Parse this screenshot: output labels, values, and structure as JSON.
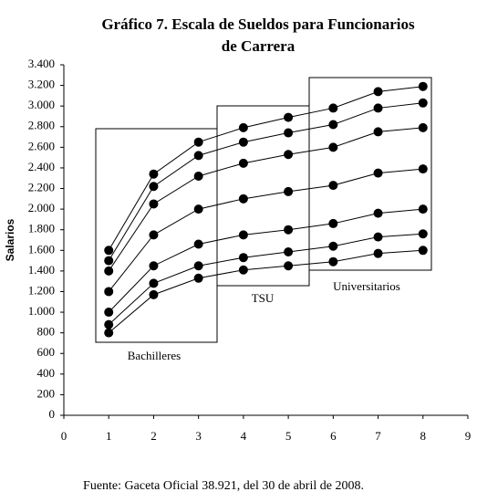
{
  "chart_data": {
    "type": "line",
    "title": [
      "Gráfico 7. Escala de Sueldos para Funcionarios",
      "de Carrera"
    ],
    "ylabel": "Salarios",
    "source": "Fuente: Gaceta Oficial 38.921, del 30 de abril de 2008.",
    "annotations": [
      "Bachilleres",
      "TSU",
      "Universitarios"
    ],
    "x": [
      1,
      2,
      3,
      4,
      5,
      6,
      7,
      8
    ],
    "color": "#000000",
    "series": [
      {
        "values": [
          1600,
          2340,
          2650,
          2790,
          2890,
          2980,
          3140,
          3190
        ]
      },
      {
        "values": [
          1500,
          2220,
          2520,
          2650,
          2740,
          2820,
          2980,
          3030
        ]
      },
      {
        "values": [
          1400,
          2050,
          2320,
          2445,
          2530,
          2600,
          2750,
          2790
        ]
      },
      {
        "values": [
          1200,
          1750,
          2000,
          2100,
          2170,
          2230,
          2350,
          2390
        ]
      },
      {
        "values": [
          1000,
          1450,
          1660,
          1750,
          1800,
          1860,
          1960,
          2000
        ]
      },
      {
        "values": [
          880,
          1280,
          1450,
          1530,
          1585,
          1640,
          1730,
          1760
        ]
      },
      {
        "values": [
          800,
          1170,
          1330,
          1410,
          1450,
          1490,
          1570,
          1600
        ]
      }
    ],
    "xlim": [
      0,
      9
    ],
    "xticks": [
      0,
      1,
      2,
      3,
      4,
      5,
      6,
      7,
      8,
      9
    ],
    "ylim": [
      0,
      3400
    ],
    "yticks": [
      0,
      200,
      400,
      600,
      800,
      {
        "value": 1000,
        "label": "1.000"
      },
      {
        "value": 1200,
        "label": "1.200"
      },
      {
        "value": 1400,
        "label": "1.400"
      },
      {
        "value": 1600,
        "label": "1.600"
      },
      {
        "value": 1800,
        "label": "1.800"
      },
      {
        "value": 2000,
        "label": "2.000"
      },
      {
        "value": 2200,
        "label": "2.200"
      },
      {
        "value": 2400,
        "label": "2.400"
      },
      {
        "value": 2600,
        "label": "2.600"
      },
      {
        "value": 2800,
        "label": "2.800"
      },
      {
        "value": 3000,
        "label": "3.000"
      },
      {
        "value": 3200,
        "label": "3.200"
      },
      {
        "value": 3400,
        "label": "3.400"
      }
    ],
    "grid": false
  }
}
